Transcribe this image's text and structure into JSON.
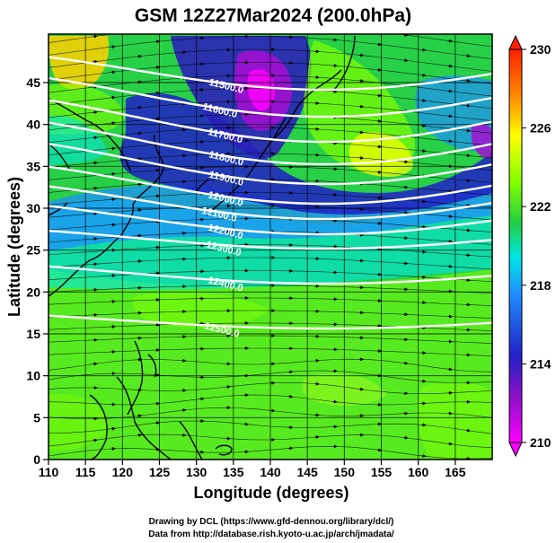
{
  "chart_data": {
    "type": "heatmap",
    "title": "GSM 12Z27Mar2024 (200.0hPa)",
    "xlabel": "Longitude (degrees)",
    "ylabel": "Latitude  (degrees)",
    "xlim": [
      110,
      170
    ],
    "ylim": [
      0,
      50
    ],
    "x_ticks": [
      "110",
      "115",
      "120",
      "125",
      "130",
      "135",
      "140",
      "145",
      "150",
      "155",
      "160",
      "165"
    ],
    "y_ticks": [
      "0",
      "5",
      "10",
      "15",
      "20",
      "25",
      "30",
      "35",
      "40",
      "45"
    ],
    "colorbar": {
      "min": 210,
      "max": 230,
      "ticks": [
        "210",
        "214",
        "218",
        "222",
        "226",
        "230"
      ],
      "colors": [
        "#ff00ff",
        "#2020c8",
        "#1e90ff",
        "#00e5e5",
        "#20d020",
        "#7fff00",
        "#ffff00",
        "#ff8c00",
        "#ff2000"
      ]
    },
    "contours": [
      {
        "label": "11500.0"
      },
      {
        "label": "11600.0"
      },
      {
        "label": "11700.0"
      },
      {
        "label": "11800.0"
      },
      {
        "label": "11900.0"
      },
      {
        "label": "12000.0"
      },
      {
        "label": "12100.0"
      },
      {
        "label": "12200.0"
      },
      {
        "label": "12300.0"
      },
      {
        "label": "12400.0"
      },
      {
        "label": "12500.0"
      }
    ],
    "grid": true,
    "credits": [
      "Drawing by DCL (https://www.gfd-dennou.org/library/dcl/)",
      "Data from http://database.rish.kyoto-u.ac.jp/arch/jmadata/"
    ]
  }
}
